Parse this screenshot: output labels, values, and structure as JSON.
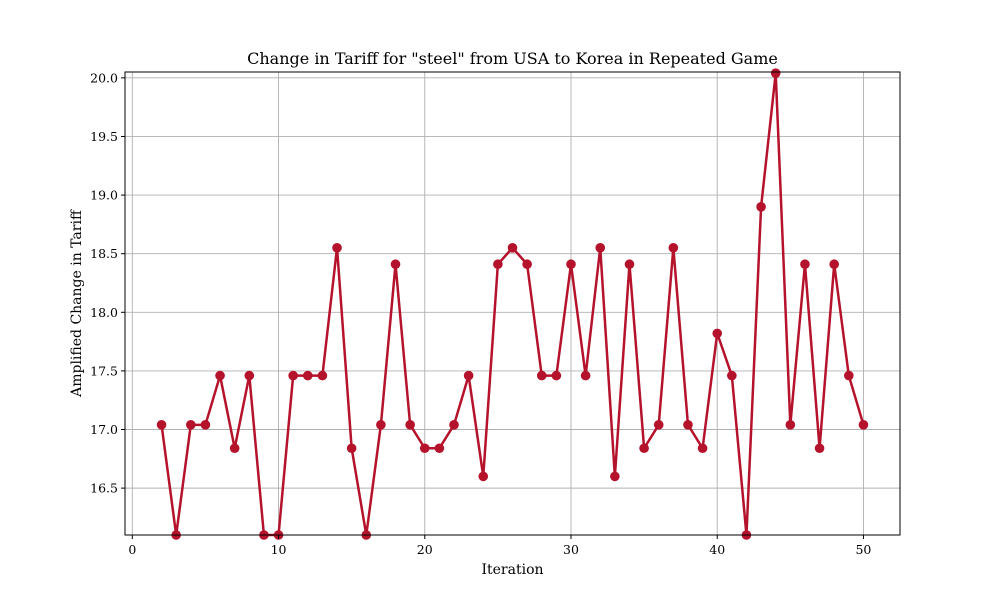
{
  "chart_data": {
    "type": "line",
    "title": "Change in Tariff for \"steel\" from USA to Korea in Repeated Game",
    "xlabel": "Iteration",
    "ylabel": "Amplified Change in Tariff",
    "xlim": [
      -0.5,
      52.5
    ],
    "ylim": [
      16.1,
      20.05
    ],
    "xticks": [
      0,
      10,
      20,
      30,
      40,
      50
    ],
    "yticks": [
      16.5,
      17.0,
      17.5,
      18.0,
      18.5,
      19.0,
      19.5,
      20.0
    ],
    "grid": true,
    "color": "#b5122b",
    "series": [
      {
        "x": [
          2,
          3,
          4,
          5,
          6,
          7,
          8,
          9,
          10,
          11,
          12,
          13,
          14,
          15,
          16,
          17,
          18,
          19,
          20,
          21,
          22,
          23,
          24,
          25,
          26,
          27,
          28,
          29,
          30,
          31,
          32,
          33,
          34,
          35,
          36,
          37,
          38,
          39,
          40,
          41,
          42,
          43,
          44,
          45,
          46,
          47,
          48,
          49,
          50
        ],
        "values": [
          17.04,
          16.1,
          17.04,
          17.04,
          17.46,
          16.84,
          17.46,
          16.1,
          16.1,
          17.46,
          17.46,
          17.46,
          18.55,
          16.84,
          16.1,
          17.04,
          18.41,
          17.04,
          16.84,
          16.84,
          17.04,
          17.46,
          16.6,
          18.41,
          18.55,
          18.41,
          17.46,
          17.46,
          18.41,
          17.46,
          18.55,
          16.6,
          18.41,
          16.84,
          17.04,
          18.55,
          17.04,
          16.84,
          17.82,
          17.46,
          16.1,
          18.9,
          20.04,
          17.04,
          18.41,
          16.84,
          18.41,
          17.46,
          17.04
        ]
      }
    ]
  }
}
